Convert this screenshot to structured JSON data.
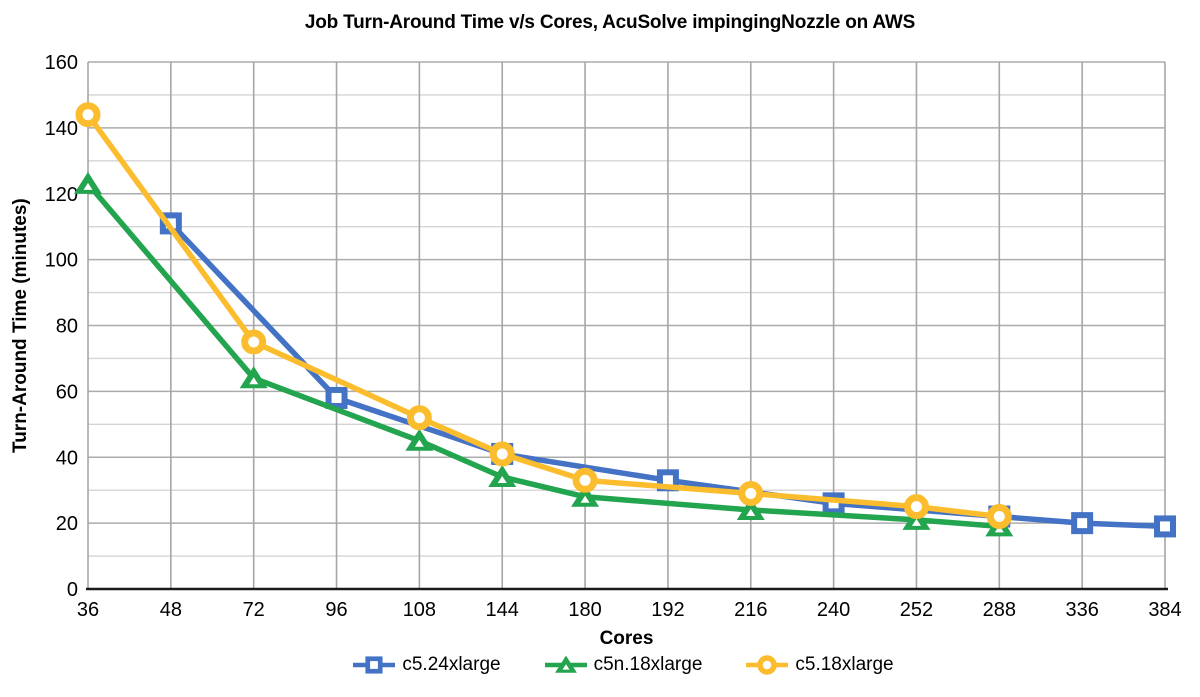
{
  "chart": {
    "title": "Job Turn-Around Time v/s Cores, AcuSolve impingingNozzle on AWS",
    "x_axis_label": "Cores",
    "y_axis_label": "Turn-Around Time (minutes)"
  },
  "chart_data": {
    "type": "line",
    "title": "Job Turn-Around Time v/s Cores, AcuSolve impingingNozzle on AWS",
    "xlabel": "Cores",
    "ylabel": "Turn-Around Time (minutes)",
    "categories": [
      36,
      48,
      72,
      96,
      108,
      144,
      180,
      192,
      216,
      240,
      252,
      288,
      336,
      384
    ],
    "y_axis": {
      "min": 0,
      "max": 160,
      "major_step": 20,
      "minor_step": 10
    },
    "grid": true,
    "legend_position": "bottom",
    "series": [
      {
        "name": "c5.24xlarge",
        "color": "#4472C4",
        "marker": "square",
        "points": [
          [
            48,
            111
          ],
          [
            96,
            58
          ],
          [
            144,
            41
          ],
          [
            192,
            33
          ],
          [
            240,
            26
          ],
          [
            288,
            22
          ],
          [
            336,
            20
          ],
          [
            384,
            19
          ]
        ]
      },
      {
        "name": "c5n.18xlarge",
        "color": "#23A44E",
        "marker": "triangle",
        "points": [
          [
            36,
            123
          ],
          [
            72,
            64
          ],
          [
            108,
            45
          ],
          [
            144,
            34
          ],
          [
            180,
            28
          ],
          [
            216,
            24
          ],
          [
            252,
            21
          ],
          [
            288,
            19
          ]
        ]
      },
      {
        "name": "c5.18xlarge",
        "color": "#FBBC2D",
        "marker": "circle",
        "points": [
          [
            36,
            144
          ],
          [
            72,
            75
          ],
          [
            108,
            52
          ],
          [
            144,
            41
          ],
          [
            180,
            33
          ],
          [
            216,
            29
          ],
          [
            252,
            25
          ],
          [
            288,
            22
          ]
        ]
      }
    ]
  },
  "style": {
    "background": "#FFFFFF",
    "major_grid_color": "#ACACAC",
    "minor_grid_color": "#D4D4D4",
    "vertical_grid_color": "#A6A6A6",
    "axis_color": "#1A1A1A",
    "text_color": "#000000"
  }
}
